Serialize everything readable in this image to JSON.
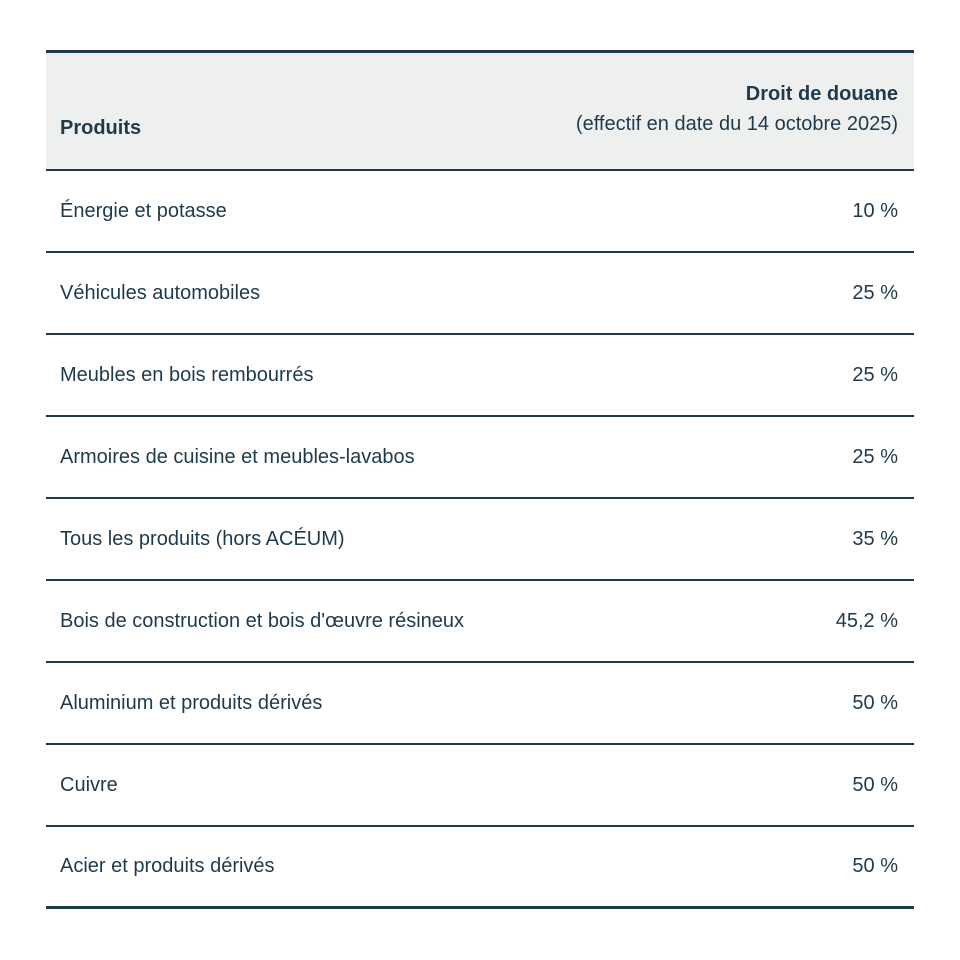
{
  "table": {
    "header": {
      "col_products": "Produits",
      "col_tariff_line1": "Droit de douane",
      "col_tariff_line2": "(effectif en date du 14 octobre 2025)"
    },
    "rows": [
      {
        "product": "Énergie et potasse",
        "tariff": "10 %"
      },
      {
        "product": "Véhicules automobiles",
        "tariff": "25 %"
      },
      {
        "product": "Meubles en bois rembourrés",
        "tariff": "25 %"
      },
      {
        "product": "Armoires de cuisine et meubles-lavabos",
        "tariff": "25 %"
      },
      {
        "product": "Tous les produits (hors ACÉUM)",
        "tariff": "35 %"
      },
      {
        "product": "Bois de construction et bois d'œuvre résineux",
        "tariff": "45,2 %"
      },
      {
        "product": "Aluminium et produits dérivés",
        "tariff": "50 %"
      },
      {
        "product": "Cuivre",
        "tariff": "50 %"
      },
      {
        "product": "Acier et produits dérivés",
        "tariff": "50 %"
      }
    ],
    "colors": {
      "text": "#1e3a4c",
      "header_bg": "#eef0f0",
      "border": "#1e3a4c",
      "row_bg": "#ffffff"
    }
  },
  "chart_data": {
    "type": "table",
    "title": "",
    "columns": [
      "Produits",
      "Droit de douane (effectif en date du 14 octobre 2025)"
    ],
    "rows": [
      [
        "Énergie et potasse",
        "10 %"
      ],
      [
        "Véhicules automobiles",
        "25 %"
      ],
      [
        "Meubles en bois rembourrés",
        "25 %"
      ],
      [
        "Armoires de cuisine et meubles-lavabos",
        "25 %"
      ],
      [
        "Tous les produits (hors ACÉUM)",
        "35 %"
      ],
      [
        "Bois de construction et bois d'œuvre résineux",
        "45,2 %"
      ],
      [
        "Aluminium et produits dérivés",
        "50 %"
      ],
      [
        "Cuivre",
        "50 %"
      ],
      [
        "Acier et produits dérivés",
        "50 %"
      ]
    ],
    "values_numeric_percent": [
      10,
      25,
      25,
      25,
      35,
      45.2,
      50,
      50,
      50
    ]
  }
}
